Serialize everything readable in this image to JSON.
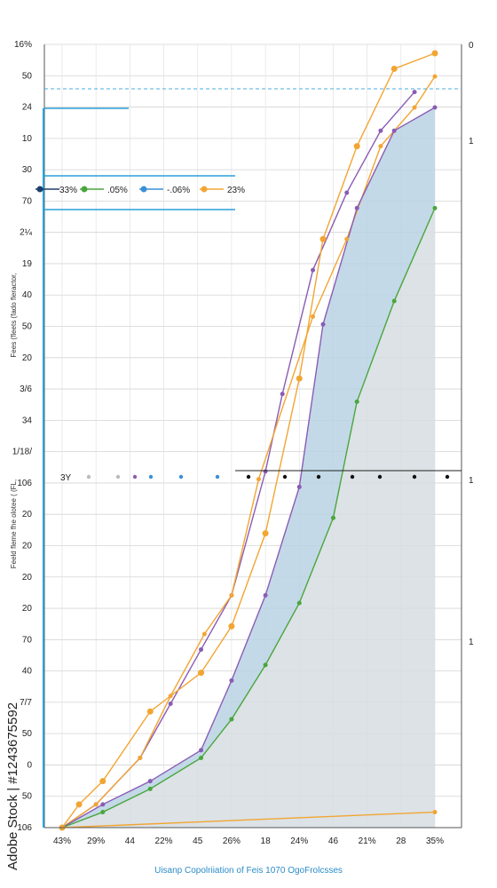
{
  "chart_data": {
    "type": "area",
    "title": "",
    "caption": "Uisanp Copolriiation of Feis 1070 OgoFrolcsses",
    "ylabel_top": "Fees (fleets (fado fleractor,",
    "ylabel_bottom": "Feeld fleme fhe olotee (  (FL,",
    "y_tick_labels": [
      "16%",
      "50",
      "24",
      "10",
      "30",
      "70",
      "2¼",
      "19",
      "40",
      "50",
      "20",
      "3/6",
      "34",
      "1/18/",
      "106",
      "20",
      "20",
      "20",
      "20",
      "70",
      "40",
      "7/7",
      "50",
      "0",
      "50",
      "106"
    ],
    "y2_tick_labels": [
      "0",
      "1",
      "1",
      "1"
    ],
    "x_tick_labels": [
      "43%",
      "29%",
      "44",
      "22%",
      "45",
      "26%",
      "18",
      "24%",
      "46",
      "21%",
      "28",
      "35%"
    ],
    "xlim": [
      0,
      11
    ],
    "ylim": [
      0,
      100
    ],
    "legend": {
      "placement": "top-left",
      "entries": [
        {
          "label": "33%",
          "color": "#1d3f6e"
        },
        {
          "label": ".05%",
          "color": "#4aa63c"
        },
        {
          "label": "-.06%",
          "color": "#3b8fd6"
        },
        {
          "label": "23%",
          "color": "#f2a533"
        }
      ]
    },
    "mid_row_label": "3Y",
    "series": [
      {
        "color": "#8a5cb5",
        "x": [
          0,
          1,
          2.3,
          3.2,
          4.1,
          5,
          6,
          6.5,
          7.4,
          8.4,
          9.4,
          10.4
        ],
        "y": [
          0,
          3,
          9,
          16,
          23,
          30,
          46,
          56,
          72,
          82,
          90,
          95
        ]
      },
      {
        "color": "#f2a533",
        "x": [
          0,
          1,
          2.3,
          3.2,
          4.2,
          5,
          5.8,
          7.4,
          8.4,
          9.4,
          10.4,
          11
        ],
        "y": [
          0,
          3,
          9,
          17,
          25,
          30,
          45,
          66,
          76,
          88,
          93,
          97
        ]
      },
      {
        "color": "#f2a533",
        "x": [
          0,
          0.5,
          1.2,
          2.6,
          4.1,
          5,
          6,
          7,
          7.7,
          8.7,
          9.8,
          11
        ],
        "y": [
          0,
          3,
          6,
          15,
          20,
          26,
          38,
          58,
          76,
          88,
          98,
          100
        ]
      },
      {
        "color": "#8a5cb5",
        "x": [
          0,
          1.2,
          2.6,
          4.1,
          5,
          6,
          7,
          7.7,
          8.7,
          9.8,
          11
        ],
        "y": [
          0,
          3,
          6,
          10,
          19,
          30,
          44,
          65,
          80,
          90,
          93
        ]
      },
      {
        "color": "#4aa63c",
        "x": [
          0,
          1.2,
          2.6,
          4.1,
          5,
          6,
          7,
          8,
          8.7,
          9.8,
          11
        ],
        "y": [
          0,
          2,
          5,
          9,
          14,
          21,
          29,
          40,
          55,
          68,
          80
        ]
      },
      {
        "color": "#f2a533",
        "x": [
          0,
          11
        ],
        "y": [
          0,
          2
        ]
      }
    ]
  }
}
